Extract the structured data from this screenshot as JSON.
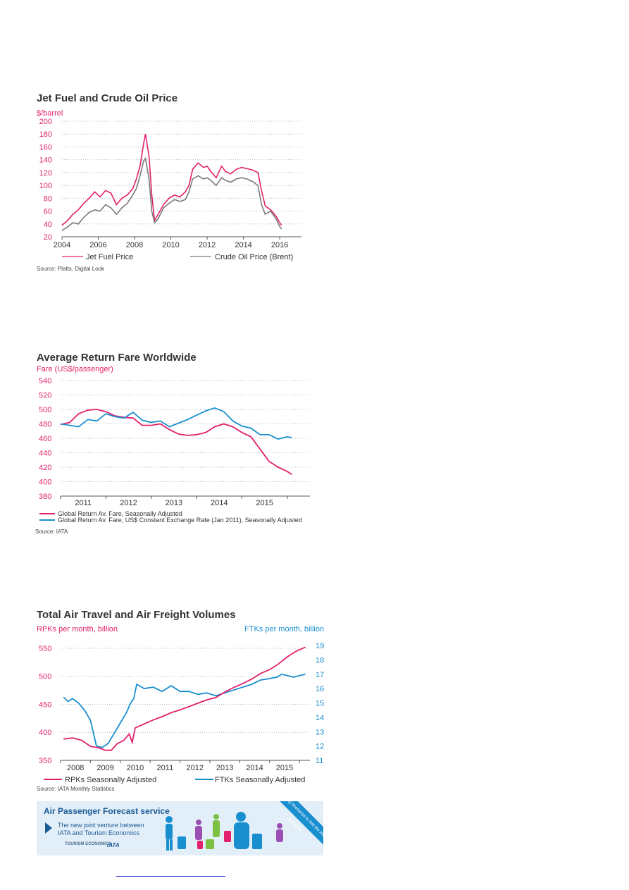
{
  "colors": {
    "pink": "#e2206c",
    "grey": "#7b7b7b",
    "blue": "#1a8fd0",
    "title": "#333333"
  },
  "chart_data": [
    {
      "type": "line",
      "title": "Jet Fuel and Crude Oil Price",
      "ylabel": "$/barrel",
      "source": "Source: Platts, Digital Look",
      "ylim": [
        20,
        200
      ],
      "xlim": [
        2004,
        2017.2
      ],
      "yticks": [
        "20",
        "40",
        "60",
        "80",
        "100",
        "120",
        "140",
        "160",
        "180",
        "200"
      ],
      "xticks": [
        "2004",
        "2006",
        "2008",
        "2010",
        "2012",
        "2014",
        "2016"
      ],
      "grid": true,
      "legend_position": "bottom",
      "series": [
        {
          "name": "Jet Fuel Price",
          "x": [
            2004.0,
            2004.3,
            2004.6,
            2004.9,
            2005.2,
            2005.5,
            2005.8,
            2006.1,
            2006.4,
            2006.7,
            2007.0,
            2007.3,
            2007.6,
            2007.9,
            2008.1,
            2008.3,
            2008.5,
            2008.6,
            2008.8,
            2008.95,
            2009.1,
            2009.3,
            2009.6,
            2009.9,
            2010.2,
            2010.5,
            2010.8,
            2011.0,
            2011.2,
            2011.5,
            2011.8,
            2012.0,
            2012.2,
            2012.5,
            2012.8,
            2013.0,
            2013.3,
            2013.6,
            2013.9,
            2014.2,
            2014.5,
            2014.8,
            2015.0,
            2015.2,
            2015.5,
            2015.8,
            2016.0,
            2016.1
          ],
          "values": [
            38,
            45,
            55,
            62,
            72,
            80,
            90,
            82,
            92,
            88,
            70,
            80,
            85,
            95,
            110,
            130,
            165,
            180,
            145,
            85,
            45,
            55,
            70,
            80,
            85,
            82,
            90,
            100,
            125,
            135,
            128,
            130,
            122,
            112,
            130,
            122,
            118,
            125,
            128,
            126,
            124,
            120,
            92,
            68,
            62,
            52,
            42,
            38
          ]
        },
        {
          "name": "Crude Oil Price (Brent)",
          "x": [
            2004.0,
            2004.3,
            2004.6,
            2004.9,
            2005.2,
            2005.5,
            2005.8,
            2006.1,
            2006.4,
            2006.7,
            2007.0,
            2007.3,
            2007.6,
            2007.9,
            2008.1,
            2008.3,
            2008.5,
            2008.6,
            2008.8,
            2008.95,
            2009.1,
            2009.3,
            2009.6,
            2009.9,
            2010.2,
            2010.5,
            2010.8,
            2011.0,
            2011.2,
            2011.5,
            2011.8,
            2012.0,
            2012.2,
            2012.5,
            2012.8,
            2013.0,
            2013.3,
            2013.6,
            2013.9,
            2014.2,
            2014.5,
            2014.8,
            2015.0,
            2015.2,
            2015.5,
            2015.8,
            2016.0,
            2016.1
          ],
          "values": [
            30,
            35,
            42,
            40,
            50,
            58,
            62,
            60,
            70,
            65,
            55,
            65,
            72,
            85,
            95,
            115,
            138,
            142,
            110,
            60,
            42,
            48,
            65,
            72,
            78,
            75,
            78,
            90,
            110,
            115,
            110,
            112,
            108,
            100,
            112,
            108,
            105,
            110,
            112,
            110,
            106,
            100,
            70,
            55,
            60,
            48,
            36,
            32
          ]
        }
      ]
    },
    {
      "type": "line",
      "title": "Average Return Fare Worldwide",
      "ylabel": "Fare (US$/passenger)",
      "source": "Source: IATA",
      "ylim": [
        380,
        540
      ],
      "xlim": [
        2010.5,
        2016.0
      ],
      "yticks": [
        "380",
        "400",
        "420",
        "440",
        "460",
        "480",
        "500",
        "520",
        "540"
      ],
      "xticks": [
        "2011",
        "2012",
        "2013",
        "2014",
        "2015"
      ],
      "xtick_positions": [
        2011,
        2012,
        2013,
        2014,
        2015
      ],
      "grid": true,
      "legend_position": "bottom",
      "series": [
        {
          "name": "Global Return Av. Fare,  Seasonally Adjusted",
          "x": [
            2010.5,
            2010.7,
            2010.9,
            2011.1,
            2011.3,
            2011.5,
            2011.7,
            2011.9,
            2012.1,
            2012.3,
            2012.5,
            2012.7,
            2012.9,
            2013.1,
            2013.3,
            2013.5,
            2013.7,
            2013.9,
            2014.1,
            2014.3,
            2014.5,
            2014.7,
            2014.9,
            2015.1,
            2015.3,
            2015.5,
            2015.6
          ],
          "values": [
            479,
            482,
            494,
            499,
            500,
            497,
            491,
            489,
            488,
            478,
            478,
            480,
            472,
            466,
            464,
            465,
            468,
            476,
            480,
            476,
            468,
            462,
            445,
            428,
            420,
            414,
            410
          ]
        },
        {
          "name": "Global Return Av. Fare, US$ Constant Exchange Rate (Jan 2011), Seasonally Adjusted",
          "x": [
            2010.5,
            2010.7,
            2010.9,
            2011.1,
            2011.3,
            2011.5,
            2011.7,
            2011.9,
            2012.1,
            2012.3,
            2012.5,
            2012.7,
            2012.9,
            2013.1,
            2013.3,
            2013.5,
            2013.7,
            2013.9,
            2014.1,
            2014.3,
            2014.5,
            2014.7,
            2014.9,
            2015.1,
            2015.3,
            2015.5,
            2015.6
          ],
          "values": [
            480,
            478,
            476,
            486,
            484,
            494,
            490,
            488,
            496,
            485,
            482,
            484,
            476,
            481,
            486,
            492,
            498,
            502,
            497,
            484,
            477,
            474,
            465,
            465,
            459,
            462,
            461
          ]
        }
      ]
    },
    {
      "type": "line",
      "title": "Total Air Travel and Air Freight Volumes",
      "ylabel": "RPKs per month, billion",
      "y2label": "FTKs per month, billion",
      "source": "Source: IATA Monthly Statistics",
      "ylim": [
        350,
        560
      ],
      "y2lim": [
        11,
        19.2
      ],
      "xlim": [
        2007.5,
        2015.85
      ],
      "yticks": [
        "350",
        "400",
        "450",
        "500",
        "550"
      ],
      "y2ticks": [
        "11",
        "12",
        "13",
        "14",
        "15",
        "16",
        "17",
        "18",
        "19"
      ],
      "xticks": [
        "2008",
        "2009",
        "2010",
        "2011",
        "2012",
        "2013",
        "2014",
        "2015"
      ],
      "xtick_positions": [
        2008,
        2009,
        2010,
        2011,
        2012,
        2013,
        2014,
        2015
      ],
      "grid": true,
      "legend_position": "bottom",
      "series": [
        {
          "name": "RPKs Seasonally Adjusted",
          "axis": "left",
          "x": [
            2007.6,
            2007.9,
            2008.2,
            2008.5,
            2008.8,
            2009.0,
            2009.2,
            2009.4,
            2009.6,
            2009.8,
            2009.9,
            2010.0,
            2010.3,
            2010.6,
            2010.9,
            2011.2,
            2011.5,
            2011.8,
            2012.1,
            2012.4,
            2012.7,
            2013.0,
            2013.3,
            2013.6,
            2013.9,
            2014.2,
            2014.5,
            2014.8,
            2015.1,
            2015.4,
            2015.7
          ],
          "values": [
            388,
            390,
            386,
            375,
            372,
            368,
            368,
            380,
            385,
            397,
            382,
            408,
            415,
            422,
            428,
            435,
            440,
            446,
            452,
            458,
            462,
            472,
            480,
            487,
            495,
            505,
            512,
            522,
            535,
            545,
            552
          ]
        },
        {
          "name": "FTKs Seasonally Adjusted",
          "axis": "right",
          "x": [
            2007.6,
            2007.75,
            2007.9,
            2008.1,
            2008.3,
            2008.5,
            2008.7,
            2008.9,
            2009.1,
            2009.3,
            2009.5,
            2009.7,
            2009.85,
            2009.95,
            2010.05,
            2010.3,
            2010.6,
            2010.9,
            2011.2,
            2011.5,
            2011.8,
            2012.1,
            2012.4,
            2012.7,
            2013.0,
            2013.3,
            2013.6,
            2013.9,
            2014.2,
            2014.5,
            2014.75,
            2014.9,
            2015.1,
            2015.3,
            2015.5,
            2015.7
          ],
          "values": [
            15.4,
            15.1,
            15.3,
            15.0,
            14.5,
            13.8,
            12.0,
            11.9,
            12.2,
            12.9,
            13.6,
            14.3,
            15.0,
            15.3,
            16.3,
            16.0,
            16.1,
            15.8,
            16.2,
            15.8,
            15.8,
            15.6,
            15.7,
            15.5,
            15.7,
            15.9,
            16.1,
            16.3,
            16.6,
            16.7,
            16.8,
            17.0,
            16.9,
            16.8,
            16.9,
            17.0
          ]
        }
      ]
    }
  ],
  "banner": {
    "title": "Air Passenger Forecast service",
    "line1": "The new joint venture between",
    "line2": "IATA and Tourism Economics",
    "logo1": "TOURISM ECONOMICS",
    "logo2": "IATA",
    "ribbon": "Including Scenarios to test the impact of events"
  }
}
